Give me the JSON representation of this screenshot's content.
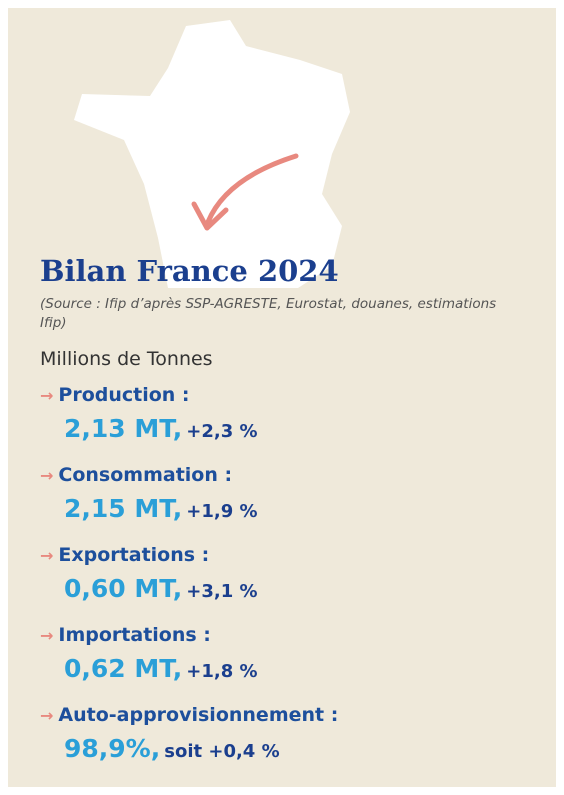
{
  "title": "Bilan France 2024",
  "source": "(Source : Ifip d’après SSP-AGRESTE, Eurostat, douanes, estimations Ifip)",
  "unit": "Millions de Tonnes",
  "items": [
    {
      "label": "Production :",
      "value": "2,13 MT,",
      "change": "+2,3 %"
    },
    {
      "label": "Consommation :",
      "value": "2,15 MT,",
      "change": "+1,9 %"
    },
    {
      "label": "Exportations :",
      "value": "0,60 MT,",
      "change": "+3,1 %"
    },
    {
      "label": "Importations :",
      "value": "0,62 MT,",
      "change": "+1,8 %"
    },
    {
      "label": "Auto-approvisionnement :",
      "value": "98,9%,",
      "change": "soit +0,4 %"
    }
  ]
}
